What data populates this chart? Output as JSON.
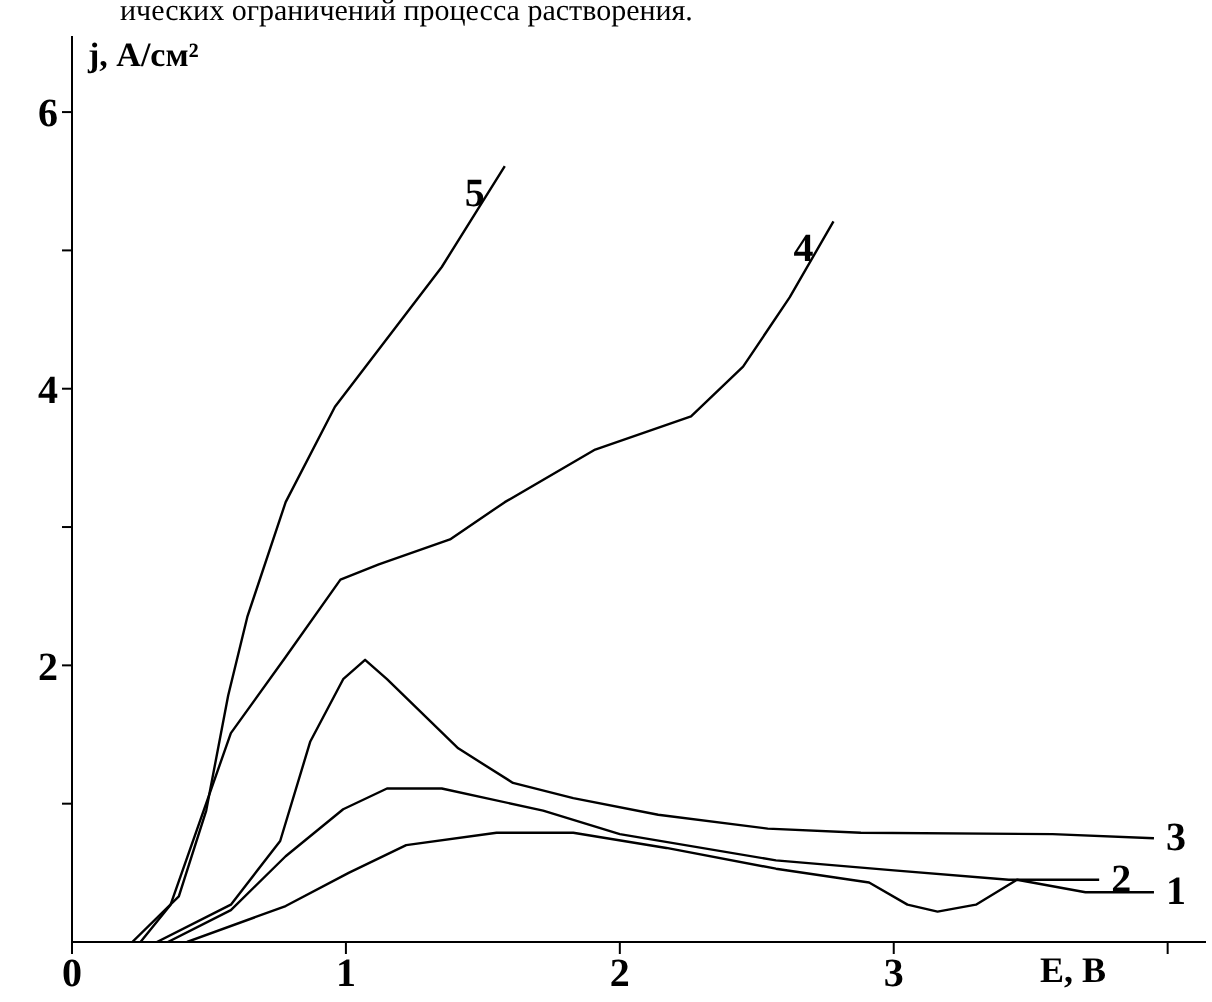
{
  "chart_data": {
    "type": "line",
    "annotations": [
      "ических ограничений процесса растворения."
    ],
    "xlabel": "E, В",
    "ylabel": "j, А/см²",
    "xlim": [
      0,
      4.14
    ],
    "ylim": [
      0,
      6.55
    ],
    "xticks": [
      0,
      1,
      2,
      3,
      {
        "value": 4,
        "label": null
      }
    ],
    "yticks": [
      {
        "value": 1,
        "label": null
      },
      2,
      {
        "value": 3,
        "label": null
      },
      4,
      {
        "value": 5,
        "label": null
      },
      6
    ],
    "grid": false,
    "legend": false,
    "marker": "none",
    "line_style": "solid",
    "series": [
      {
        "name": "1",
        "color": "#000000",
        "x": [
          0.42,
          0.78,
          1.01,
          1.22,
          1.55,
          1.83,
          2.17,
          2.57,
          2.91,
          3.05,
          3.16,
          3.3,
          3.45,
          3.7,
          3.95
        ],
        "values": [
          0,
          0.26,
          0.5,
          0.7,
          0.79,
          0.79,
          0.68,
          0.53,
          0.43,
          0.27,
          0.22,
          0.27,
          0.45,
          0.36,
          0.36
        ]
      },
      {
        "name": "2",
        "color": "#000000",
        "x": [
          0.35,
          0.58,
          0.78,
          0.99,
          1.15,
          1.35,
          1.72,
          2.0,
          2.57,
          2.99,
          3.42,
          3.75
        ],
        "values": [
          0,
          0.23,
          0.62,
          0.96,
          1.11,
          1.11,
          0.95,
          0.78,
          0.59,
          0.52,
          0.45,
          0.45
        ]
      },
      {
        "name": "3",
        "color": "#000000",
        "x": [
          0.31,
          0.58,
          0.76,
          0.87,
          0.99,
          1.07,
          1.15,
          1.41,
          1.61,
          1.83,
          2.14,
          2.54,
          2.88,
          3.58,
          3.95
        ],
        "values": [
          0,
          0.27,
          0.73,
          1.45,
          1.9,
          2.04,
          1.9,
          1.4,
          1.15,
          1.04,
          0.92,
          0.82,
          0.79,
          0.78,
          0.75
        ]
      },
      {
        "name": "4",
        "color": "#000000",
        "x": [
          0.25,
          0.36,
          0.58,
          0.78,
          0.98,
          1.12,
          1.38,
          1.58,
          1.91,
          2.26,
          2.45,
          2.62,
          2.78
        ],
        "values": [
          0,
          0.27,
          1.51,
          2.06,
          2.62,
          2.73,
          2.91,
          3.18,
          3.56,
          3.8,
          4.16,
          4.66,
          5.21
        ]
      },
      {
        "name": "5",
        "color": "#000000",
        "x": [
          0.22,
          0.39,
          0.49,
          0.57,
          0.64,
          0.78,
          0.96,
          1.35,
          1.58
        ],
        "values": [
          0,
          0.33,
          0.95,
          1.78,
          2.35,
          3.18,
          3.87,
          4.88,
          5.61
        ]
      }
    ]
  }
}
